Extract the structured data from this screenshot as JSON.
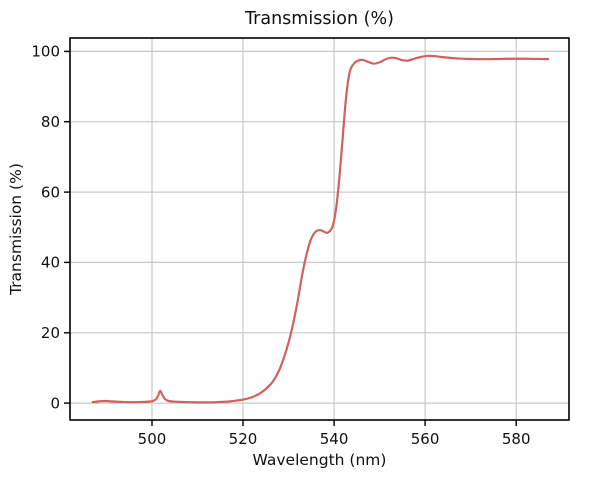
{
  "chart_data": {
    "type": "line",
    "title": "Transmission (%)",
    "xlabel": "Wavelength (nm)",
    "ylabel": "Transmission (%)",
    "xlim": [
      482.0,
      591.6
    ],
    "ylim": [
      -4.8,
      103.8
    ],
    "xticks": [
      500,
      520,
      540,
      560,
      580
    ],
    "yticks": [
      0,
      20,
      40,
      60,
      80,
      100
    ],
    "grid": true,
    "legend": false,
    "colors": {
      "line": "#cf625c",
      "grid": "#c8c8c8",
      "spine": "#000000",
      "text": "#111111",
      "background": "#ffffff"
    },
    "series": [
      {
        "name": "transmission",
        "points": [
          [
            487.0,
            0.3
          ],
          [
            488.0,
            0.45
          ],
          [
            489.0,
            0.58
          ],
          [
            490.0,
            0.6
          ],
          [
            491.0,
            0.5
          ],
          [
            492.5,
            0.38
          ],
          [
            494.0,
            0.3
          ],
          [
            496.0,
            0.26
          ],
          [
            498.0,
            0.32
          ],
          [
            499.3,
            0.42
          ],
          [
            500.2,
            0.6
          ],
          [
            500.9,
            1.1
          ],
          [
            501.4,
            2.3
          ],
          [
            501.8,
            3.5
          ],
          [
            502.3,
            2.3
          ],
          [
            502.9,
            1.1
          ],
          [
            503.6,
            0.65
          ],
          [
            504.5,
            0.48
          ],
          [
            506.0,
            0.35
          ],
          [
            508.0,
            0.27
          ],
          [
            510.0,
            0.22
          ],
          [
            512.0,
            0.21
          ],
          [
            514.0,
            0.25
          ],
          [
            516.0,
            0.38
          ],
          [
            518.0,
            0.62
          ],
          [
            519.5,
            0.88
          ],
          [
            521.0,
            1.3
          ],
          [
            522.5,
            1.95
          ],
          [
            524.0,
            3.0
          ],
          [
            525.5,
            4.6
          ],
          [
            526.8,
            6.6
          ],
          [
            528.0,
            9.5
          ],
          [
            529.0,
            13.0
          ],
          [
            530.0,
            17.2
          ],
          [
            531.0,
            22.5
          ],
          [
            532.0,
            29.0
          ],
          [
            533.0,
            36.5
          ],
          [
            533.9,
            42.0
          ],
          [
            534.7,
            45.8
          ],
          [
            535.4,
            47.8
          ],
          [
            536.1,
            48.9
          ],
          [
            536.9,
            49.2
          ],
          [
            537.7,
            48.8
          ],
          [
            538.4,
            48.4
          ],
          [
            539.0,
            48.8
          ],
          [
            539.6,
            50.0
          ],
          [
            540.1,
            52.5
          ],
          [
            540.7,
            58.0
          ],
          [
            541.3,
            66.0
          ],
          [
            541.9,
            75.5
          ],
          [
            542.5,
            85.0
          ],
          [
            543.1,
            91.8
          ],
          [
            543.7,
            95.2
          ],
          [
            544.5,
            96.7
          ],
          [
            545.5,
            97.5
          ],
          [
            546.5,
            97.5
          ],
          [
            547.5,
            97.0
          ],
          [
            548.7,
            96.5
          ],
          [
            550.0,
            96.9
          ],
          [
            551.4,
            97.8
          ],
          [
            552.6,
            98.2
          ],
          [
            553.8,
            98.0
          ],
          [
            555.0,
            97.5
          ],
          [
            556.3,
            97.4
          ],
          [
            557.6,
            97.9
          ],
          [
            559.0,
            98.4
          ],
          [
            560.5,
            98.7
          ],
          [
            562.0,
            98.65
          ],
          [
            563.5,
            98.4
          ],
          [
            565.5,
            98.15
          ],
          [
            567.5,
            97.95
          ],
          [
            570.0,
            97.82
          ],
          [
            573.0,
            97.78
          ],
          [
            576.0,
            97.83
          ],
          [
            579.0,
            97.9
          ],
          [
            582.0,
            97.9
          ],
          [
            585.0,
            97.85
          ],
          [
            587.0,
            97.8
          ]
        ]
      }
    ]
  }
}
